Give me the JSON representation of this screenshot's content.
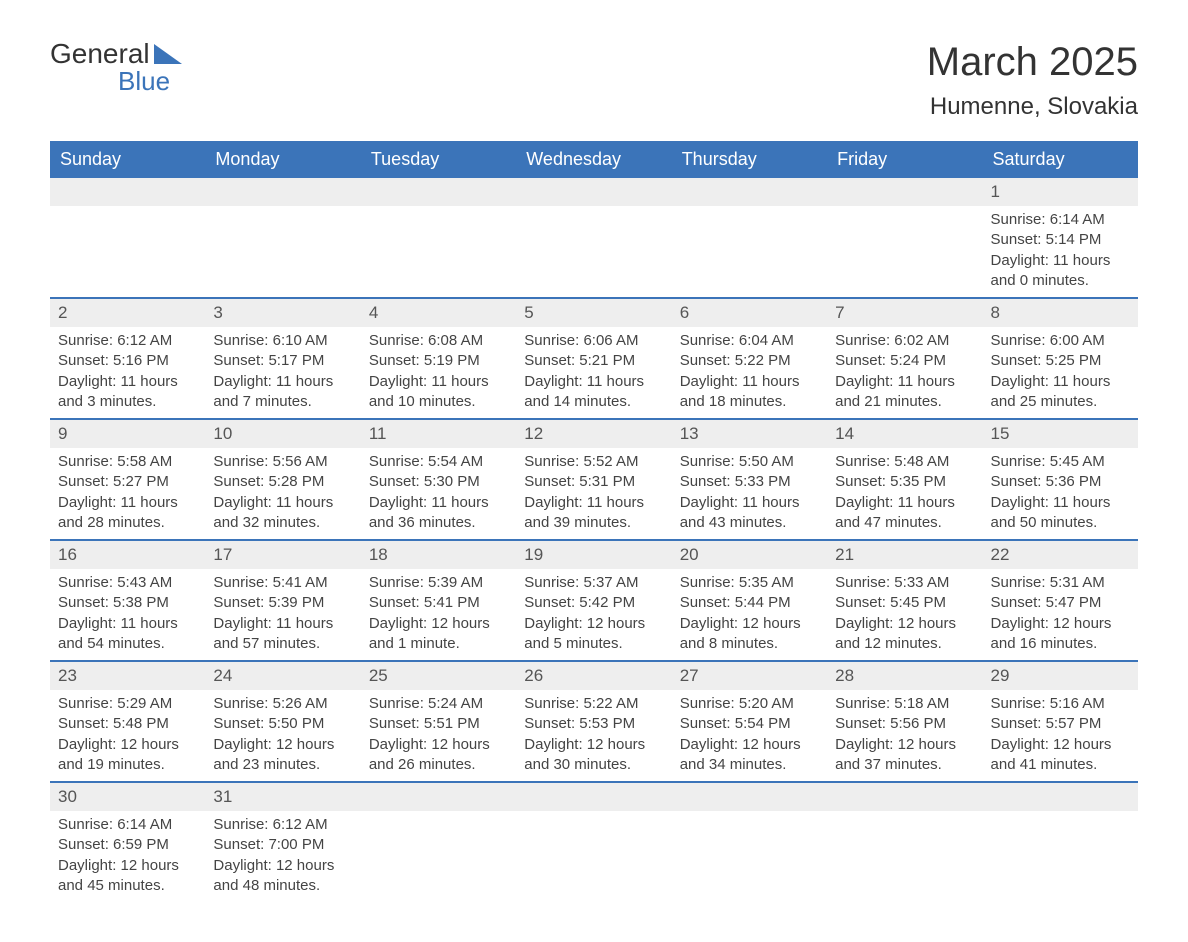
{
  "logo": {
    "text1": "General",
    "text2": "Blue"
  },
  "title": "March 2025",
  "location": "Humenne, Slovakia",
  "colors": {
    "header_bg": "#3b74b9",
    "header_text": "#ffffff",
    "daynum_bg": "#eeeeee",
    "border": "#3b74b9",
    "body_text": "#444444",
    "logo_blue": "#3b74b9"
  },
  "typography": {
    "title_fontsize": 40,
    "location_fontsize": 24,
    "header_fontsize": 18,
    "daynum_fontsize": 17,
    "cell_fontsize": 15
  },
  "weekdays": [
    "Sunday",
    "Monday",
    "Tuesday",
    "Wednesday",
    "Thursday",
    "Friday",
    "Saturday"
  ],
  "weeks": [
    {
      "nums": [
        "",
        "",
        "",
        "",
        "",
        "",
        "1"
      ],
      "data": [
        null,
        null,
        null,
        null,
        null,
        null,
        {
          "sunrise": "Sunrise: 6:14 AM",
          "sunset": "Sunset: 5:14 PM",
          "dl1": "Daylight: 11 hours",
          "dl2": "and 0 minutes."
        }
      ]
    },
    {
      "nums": [
        "2",
        "3",
        "4",
        "5",
        "6",
        "7",
        "8"
      ],
      "data": [
        {
          "sunrise": "Sunrise: 6:12 AM",
          "sunset": "Sunset: 5:16 PM",
          "dl1": "Daylight: 11 hours",
          "dl2": "and 3 minutes."
        },
        {
          "sunrise": "Sunrise: 6:10 AM",
          "sunset": "Sunset: 5:17 PM",
          "dl1": "Daylight: 11 hours",
          "dl2": "and 7 minutes."
        },
        {
          "sunrise": "Sunrise: 6:08 AM",
          "sunset": "Sunset: 5:19 PM",
          "dl1": "Daylight: 11 hours",
          "dl2": "and 10 minutes."
        },
        {
          "sunrise": "Sunrise: 6:06 AM",
          "sunset": "Sunset: 5:21 PM",
          "dl1": "Daylight: 11 hours",
          "dl2": "and 14 minutes."
        },
        {
          "sunrise": "Sunrise: 6:04 AM",
          "sunset": "Sunset: 5:22 PM",
          "dl1": "Daylight: 11 hours",
          "dl2": "and 18 minutes."
        },
        {
          "sunrise": "Sunrise: 6:02 AM",
          "sunset": "Sunset: 5:24 PM",
          "dl1": "Daylight: 11 hours",
          "dl2": "and 21 minutes."
        },
        {
          "sunrise": "Sunrise: 6:00 AM",
          "sunset": "Sunset: 5:25 PM",
          "dl1": "Daylight: 11 hours",
          "dl2": "and 25 minutes."
        }
      ]
    },
    {
      "nums": [
        "9",
        "10",
        "11",
        "12",
        "13",
        "14",
        "15"
      ],
      "data": [
        {
          "sunrise": "Sunrise: 5:58 AM",
          "sunset": "Sunset: 5:27 PM",
          "dl1": "Daylight: 11 hours",
          "dl2": "and 28 minutes."
        },
        {
          "sunrise": "Sunrise: 5:56 AM",
          "sunset": "Sunset: 5:28 PM",
          "dl1": "Daylight: 11 hours",
          "dl2": "and 32 minutes."
        },
        {
          "sunrise": "Sunrise: 5:54 AM",
          "sunset": "Sunset: 5:30 PM",
          "dl1": "Daylight: 11 hours",
          "dl2": "and 36 minutes."
        },
        {
          "sunrise": "Sunrise: 5:52 AM",
          "sunset": "Sunset: 5:31 PM",
          "dl1": "Daylight: 11 hours",
          "dl2": "and 39 minutes."
        },
        {
          "sunrise": "Sunrise: 5:50 AM",
          "sunset": "Sunset: 5:33 PM",
          "dl1": "Daylight: 11 hours",
          "dl2": "and 43 minutes."
        },
        {
          "sunrise": "Sunrise: 5:48 AM",
          "sunset": "Sunset: 5:35 PM",
          "dl1": "Daylight: 11 hours",
          "dl2": "and 47 minutes."
        },
        {
          "sunrise": "Sunrise: 5:45 AM",
          "sunset": "Sunset: 5:36 PM",
          "dl1": "Daylight: 11 hours",
          "dl2": "and 50 minutes."
        }
      ]
    },
    {
      "nums": [
        "16",
        "17",
        "18",
        "19",
        "20",
        "21",
        "22"
      ],
      "data": [
        {
          "sunrise": "Sunrise: 5:43 AM",
          "sunset": "Sunset: 5:38 PM",
          "dl1": "Daylight: 11 hours",
          "dl2": "and 54 minutes."
        },
        {
          "sunrise": "Sunrise: 5:41 AM",
          "sunset": "Sunset: 5:39 PM",
          "dl1": "Daylight: 11 hours",
          "dl2": "and 57 minutes."
        },
        {
          "sunrise": "Sunrise: 5:39 AM",
          "sunset": "Sunset: 5:41 PM",
          "dl1": "Daylight: 12 hours",
          "dl2": "and 1 minute."
        },
        {
          "sunrise": "Sunrise: 5:37 AM",
          "sunset": "Sunset: 5:42 PM",
          "dl1": "Daylight: 12 hours",
          "dl2": "and 5 minutes."
        },
        {
          "sunrise": "Sunrise: 5:35 AM",
          "sunset": "Sunset: 5:44 PM",
          "dl1": "Daylight: 12 hours",
          "dl2": "and 8 minutes."
        },
        {
          "sunrise": "Sunrise: 5:33 AM",
          "sunset": "Sunset: 5:45 PM",
          "dl1": "Daylight: 12 hours",
          "dl2": "and 12 minutes."
        },
        {
          "sunrise": "Sunrise: 5:31 AM",
          "sunset": "Sunset: 5:47 PM",
          "dl1": "Daylight: 12 hours",
          "dl2": "and 16 minutes."
        }
      ]
    },
    {
      "nums": [
        "23",
        "24",
        "25",
        "26",
        "27",
        "28",
        "29"
      ],
      "data": [
        {
          "sunrise": "Sunrise: 5:29 AM",
          "sunset": "Sunset: 5:48 PM",
          "dl1": "Daylight: 12 hours",
          "dl2": "and 19 minutes."
        },
        {
          "sunrise": "Sunrise: 5:26 AM",
          "sunset": "Sunset: 5:50 PM",
          "dl1": "Daylight: 12 hours",
          "dl2": "and 23 minutes."
        },
        {
          "sunrise": "Sunrise: 5:24 AM",
          "sunset": "Sunset: 5:51 PM",
          "dl1": "Daylight: 12 hours",
          "dl2": "and 26 minutes."
        },
        {
          "sunrise": "Sunrise: 5:22 AM",
          "sunset": "Sunset: 5:53 PM",
          "dl1": "Daylight: 12 hours",
          "dl2": "and 30 minutes."
        },
        {
          "sunrise": "Sunrise: 5:20 AM",
          "sunset": "Sunset: 5:54 PM",
          "dl1": "Daylight: 12 hours",
          "dl2": "and 34 minutes."
        },
        {
          "sunrise": "Sunrise: 5:18 AM",
          "sunset": "Sunset: 5:56 PM",
          "dl1": "Daylight: 12 hours",
          "dl2": "and 37 minutes."
        },
        {
          "sunrise": "Sunrise: 5:16 AM",
          "sunset": "Sunset: 5:57 PM",
          "dl1": "Daylight: 12 hours",
          "dl2": "and 41 minutes."
        }
      ]
    },
    {
      "nums": [
        "30",
        "31",
        "",
        "",
        "",
        "",
        ""
      ],
      "data": [
        {
          "sunrise": "Sunrise: 6:14 AM",
          "sunset": "Sunset: 6:59 PM",
          "dl1": "Daylight: 12 hours",
          "dl2": "and 45 minutes."
        },
        {
          "sunrise": "Sunrise: 6:12 AM",
          "sunset": "Sunset: 7:00 PM",
          "dl1": "Daylight: 12 hours",
          "dl2": "and 48 minutes."
        },
        null,
        null,
        null,
        null,
        null
      ]
    }
  ]
}
